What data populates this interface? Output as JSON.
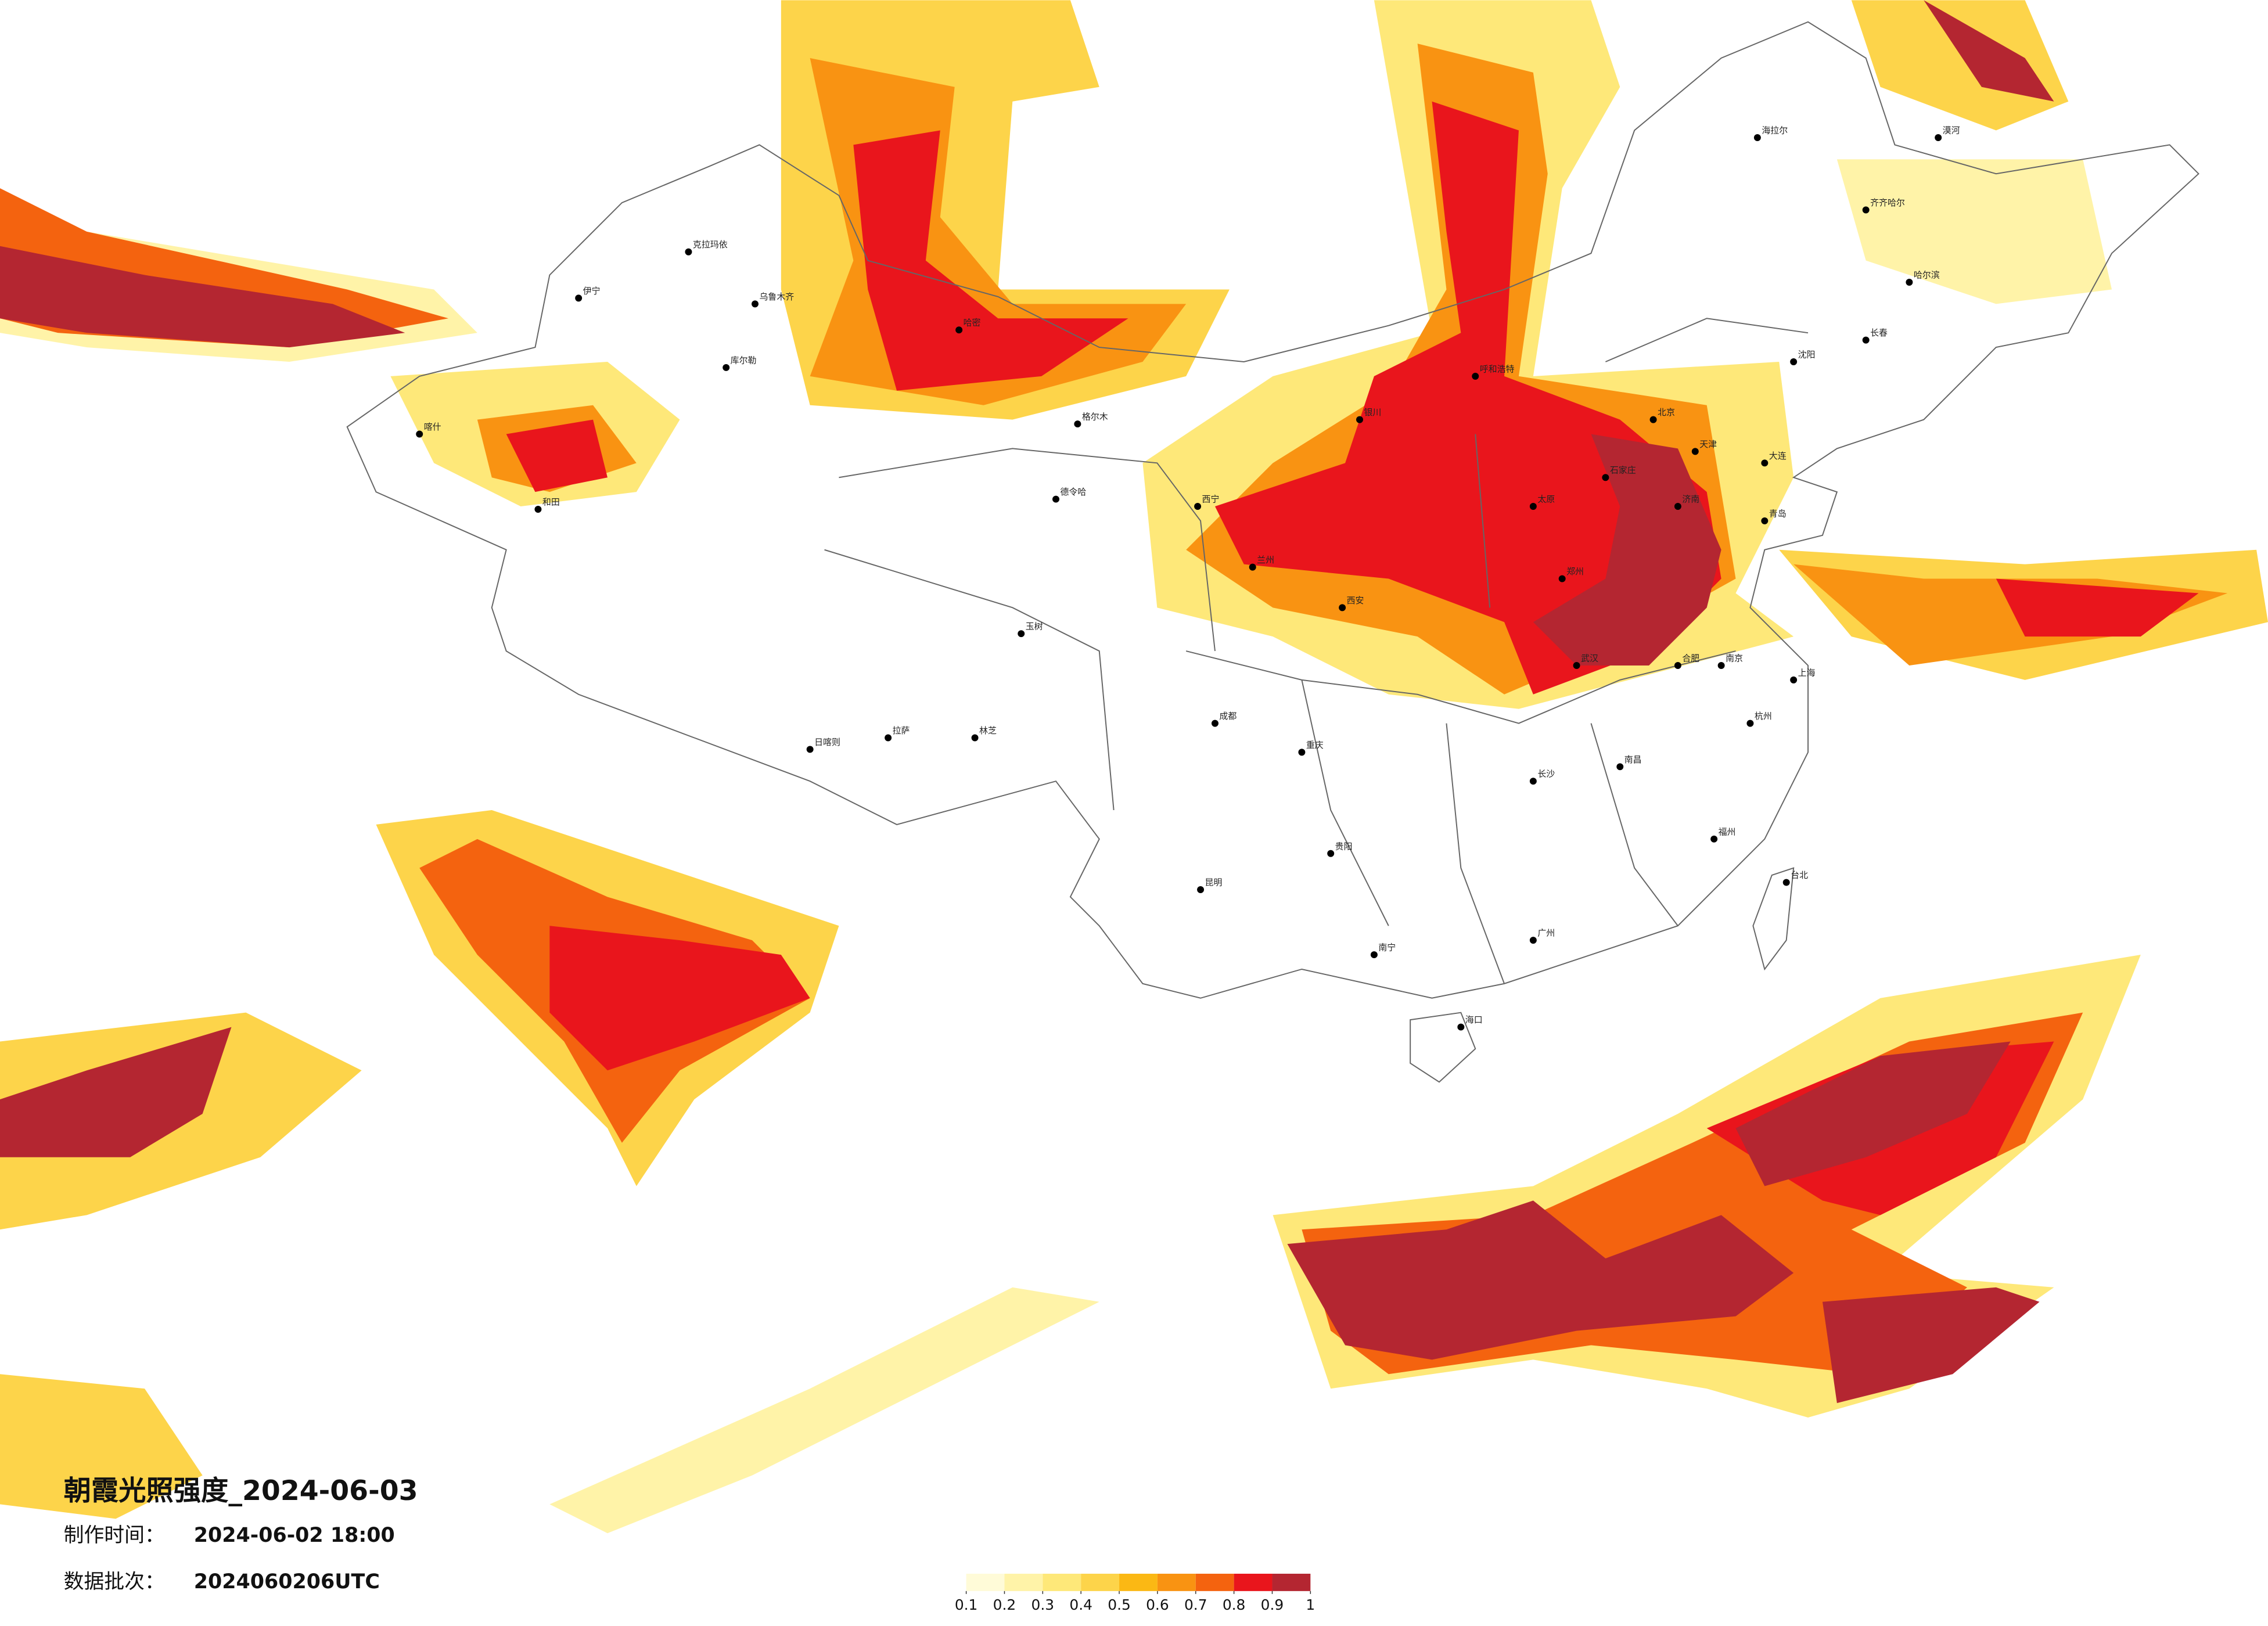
{
  "title": "朝霞光照强度_2024-06-03",
  "production_time": {
    "label": "制作时间：",
    "value": "2024-06-02 18:00"
  },
  "data_batch": {
    "label": "数据批次：",
    "value": "2024060206UTC"
  },
  "legend": {
    "ticks": [
      0.1,
      0.2,
      0.3,
      0.4,
      0.5,
      0.6,
      0.7,
      0.8,
      0.9,
      1
    ],
    "colors": [
      "#fffbd8",
      "#fff3a8",
      "#fee879",
      "#fdd44a",
      "#fbb814",
      "#f99312",
      "#f4630f",
      "#e9151c",
      "#b42631"
    ]
  },
  "cities": [
    "克拉玛依",
    "乌鲁木齐",
    "伊宁",
    "喀什",
    "和田",
    "库尔勒",
    "哈密",
    "格尔木",
    "德令哈",
    "拉萨",
    "日喀则",
    "林芝",
    "玉树",
    "西宁",
    "兰州",
    "银川",
    "呼和浩特",
    "北京",
    "天津",
    "石家庄",
    "太原",
    "西安",
    "郑州",
    "济南",
    "青岛",
    "南京",
    "上海",
    "杭州",
    "合肥",
    "武汉",
    "长沙",
    "南昌",
    "福州",
    "台北",
    "广州",
    "南宁",
    "海口",
    "昆明",
    "贵阳",
    "重庆",
    "成都",
    "沈阳",
    "长春",
    "哈尔滨",
    "大连",
    "齐齐哈尔",
    "漠河",
    "海拉尔"
  ]
}
